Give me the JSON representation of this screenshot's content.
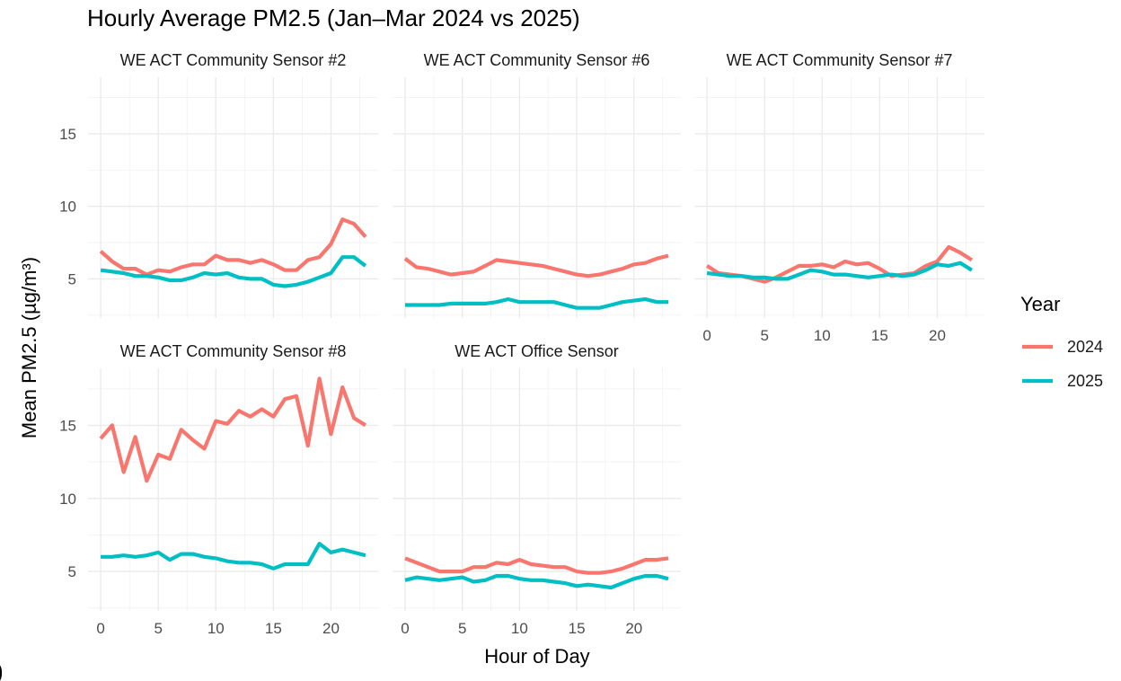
{
  "chart_data": {
    "type": "line",
    "title": "Hourly Average PM2.5 (Jan–Mar 2024 vs 2025)",
    "xlabel": "Hour of Day",
    "ylabel": "Mean PM2.5 (µg/m³)",
    "xlim": [
      -1.1,
      24.1
    ],
    "ylim": [
      2.3,
      18.9
    ],
    "xticks": [
      0,
      5,
      10,
      15,
      20
    ],
    "yticks": [
      5,
      10,
      15
    ],
    "grid": true,
    "x": [
      0,
      1,
      2,
      3,
      4,
      5,
      6,
      7,
      8,
      9,
      10,
      11,
      12,
      13,
      14,
      15,
      16,
      17,
      18,
      19,
      20,
      21,
      22,
      23
    ],
    "legend": {
      "title": "Year",
      "placement": "right",
      "entries": [
        {
          "label": "2024",
          "color": "#F8766D"
        },
        {
          "label": "2025",
          "color": "#00BFC4"
        }
      ]
    },
    "panels": [
      {
        "name": "WE ACT Community Sensor #2",
        "series": [
          {
            "name": "2024",
            "color": "#F8766D",
            "values": [
              6.9,
              6.2,
              5.7,
              5.7,
              5.3,
              5.6,
              5.5,
              5.8,
              6.0,
              6.0,
              6.6,
              6.3,
              6.3,
              6.1,
              6.3,
              6.0,
              5.6,
              5.6,
              6.3,
              6.5,
              7.4,
              9.1,
              8.8,
              7.9
            ]
          },
          {
            "name": "2025",
            "color": "#00BFC4",
            "values": [
              5.6,
              5.5,
              5.4,
              5.2,
              5.2,
              5.1,
              4.9,
              4.9,
              5.1,
              5.4,
              5.3,
              5.4,
              5.1,
              5.0,
              5.0,
              4.6,
              4.5,
              4.6,
              4.8,
              5.1,
              5.4,
              6.5,
              6.5,
              5.9
            ]
          }
        ]
      },
      {
        "name": "WE ACT Community Sensor #6",
        "series": [
          {
            "name": "2024",
            "color": "#F8766D",
            "values": [
              6.4,
              5.8,
              5.7,
              5.5,
              5.3,
              5.4,
              5.5,
              5.9,
              6.3,
              6.2,
              6.1,
              6.0,
              5.9,
              5.7,
              5.5,
              5.3,
              5.2,
              5.3,
              5.5,
              5.7,
              6.0,
              6.1,
              6.4,
              6.6
            ]
          },
          {
            "name": "2025",
            "color": "#00BFC4",
            "values": [
              3.2,
              3.2,
              3.2,
              3.2,
              3.3,
              3.3,
              3.3,
              3.3,
              3.4,
              3.6,
              3.4,
              3.4,
              3.4,
              3.4,
              3.2,
              3.0,
              3.0,
              3.0,
              3.2,
              3.4,
              3.5,
              3.6,
              3.4,
              3.4
            ]
          }
        ]
      },
      {
        "name": "WE ACT Community Sensor #7",
        "series": [
          {
            "name": "2024",
            "color": "#F8766D",
            "values": [
              5.9,
              5.4,
              5.3,
              5.2,
              5.0,
              4.8,
              5.1,
              5.5,
              5.9,
              5.9,
              6.0,
              5.8,
              6.2,
              6.0,
              6.1,
              5.7,
              5.2,
              5.3,
              5.4,
              5.9,
              6.2,
              7.2,
              6.8,
              6.3
            ]
          },
          {
            "name": "2025",
            "color": "#00BFC4",
            "values": [
              5.4,
              5.3,
              5.2,
              5.2,
              5.1,
              5.1,
              5.0,
              5.0,
              5.3,
              5.6,
              5.5,
              5.3,
              5.3,
              5.2,
              5.1,
              5.2,
              5.3,
              5.2,
              5.3,
              5.6,
              6.0,
              5.9,
              6.1,
              5.6
            ]
          }
        ]
      },
      {
        "name": "WE ACT Community Sensor #8",
        "series": [
          {
            "name": "2024",
            "color": "#F8766D",
            "values": [
              14.1,
              15.0,
              11.8,
              14.2,
              11.2,
              13.0,
              12.7,
              14.7,
              14.0,
              13.4,
              15.3,
              15.1,
              16.0,
              15.6,
              16.1,
              15.6,
              16.8,
              17.0,
              13.6,
              18.2,
              14.4,
              17.6,
              15.5,
              15.0
            ]
          },
          {
            "name": "2025",
            "color": "#00BFC4",
            "values": [
              6.0,
              6.0,
              6.1,
              6.0,
              6.1,
              6.3,
              5.8,
              6.2,
              6.2,
              6.0,
              5.9,
              5.7,
              5.6,
              5.6,
              5.5,
              5.2,
              5.5,
              5.5,
              5.5,
              6.9,
              6.3,
              6.5,
              6.3,
              6.1
            ]
          }
        ]
      },
      {
        "name": "WE ACT Office Sensor",
        "series": [
          {
            "name": "2024",
            "color": "#F8766D",
            "values": [
              5.9,
              5.6,
              5.3,
              5.0,
              5.0,
              5.0,
              5.3,
              5.3,
              5.6,
              5.5,
              5.8,
              5.5,
              5.4,
              5.3,
              5.3,
              5.0,
              4.9,
              4.9,
              5.0,
              5.2,
              5.5,
              5.8,
              5.8,
              5.9
            ]
          },
          {
            "name": "2025",
            "color": "#00BFC4",
            "values": [
              4.4,
              4.6,
              4.5,
              4.4,
              4.5,
              4.6,
              4.3,
              4.4,
              4.7,
              4.7,
              4.5,
              4.4,
              4.4,
              4.3,
              4.2,
              4.0,
              4.1,
              4.0,
              3.9,
              4.2,
              4.5,
              4.7,
              4.7,
              4.5
            ]
          }
        ]
      }
    ]
  },
  "stray_label": ")"
}
